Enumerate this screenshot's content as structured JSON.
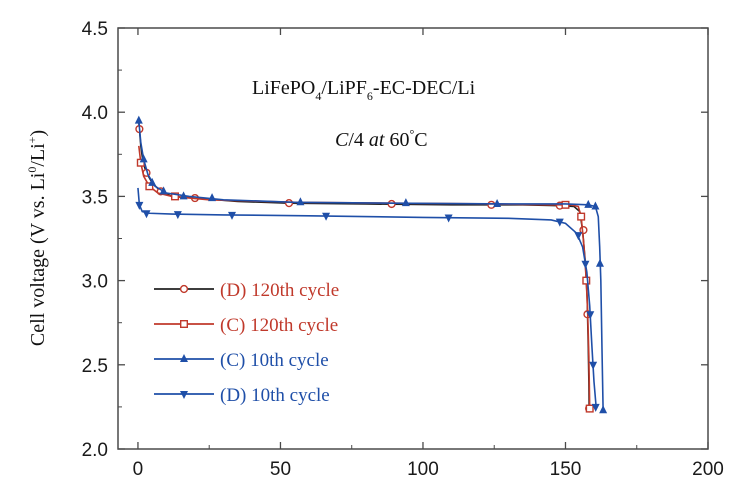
{
  "chart_data": {
    "type": "line",
    "title_parts": {
      "a": "LiFePO",
      "a_sub": "4",
      "b": "/LiPF",
      "b_sub": "6",
      "c": "-EC-DEC/Li"
    },
    "condition": {
      "rate": "C",
      "rest": "/4 ",
      "at": "at",
      "temp": " 60",
      "deg": "°",
      "unit": "C"
    },
    "ylabel": {
      "main": "Cell voltage (V vs. Li",
      "sup1": "0",
      "mid": "/Li",
      "sup2": "+",
      "end": ")"
    },
    "xlabel": "",
    "xlim": [
      -7,
      200
    ],
    "ylim": [
      2.0,
      4.5
    ],
    "xticks": [
      0,
      50,
      100,
      150,
      200
    ],
    "yticks": [
      2.0,
      2.5,
      3.0,
      3.5,
      4.0,
      4.5
    ],
    "xtick_labels": [
      "0",
      "50",
      "100",
      "150",
      "200"
    ],
    "ytick_labels": [
      "2.0",
      "2.5",
      "3.0",
      "3.5",
      "4.0",
      "4.5"
    ],
    "series": [
      {
        "name": "(D) 120th cycle",
        "line_color": "#222222",
        "marker": "circle-open",
        "marker_color": "#c0392b",
        "legend_color": "#c0392b",
        "points": [
          [
            0.2,
            3.96
          ],
          [
            0.5,
            3.9
          ],
          [
            1,
            3.8
          ],
          [
            1.8,
            3.7
          ],
          [
            3,
            3.64
          ],
          [
            5,
            3.58
          ],
          [
            8,
            3.53
          ],
          [
            12,
            3.5
          ],
          [
            20,
            3.49
          ],
          [
            35,
            3.47
          ],
          [
            53,
            3.46
          ],
          [
            80,
            3.455
          ],
          [
            110,
            3.45
          ],
          [
            135,
            3.45
          ],
          [
            148,
            3.445
          ],
          [
            153,
            3.44
          ],
          [
            155,
            3.41
          ],
          [
            156,
            3.3
          ],
          [
            157,
            3.1
          ],
          [
            157.6,
            2.9
          ],
          [
            158,
            2.6
          ],
          [
            158.2,
            2.4
          ],
          [
            158.3,
            2.24
          ]
        ],
        "markers": [
          [
            0.5,
            3.9
          ],
          [
            3,
            3.64
          ],
          [
            8,
            3.53
          ],
          [
            20,
            3.49
          ],
          [
            53,
            3.46
          ],
          [
            89,
            3.455
          ],
          [
            124,
            3.45
          ],
          [
            148,
            3.445
          ],
          [
            156.3,
            3.3
          ],
          [
            157.7,
            2.8
          ],
          [
            158.3,
            2.24
          ]
        ]
      },
      {
        "name": "(C) 120th cycle",
        "line_color": "#c0392b",
        "marker": "square-open",
        "marker_color": "#c0392b",
        "legend_color": "#c0392b",
        "points": [
          [
            0.3,
            3.8
          ],
          [
            1,
            3.7
          ],
          [
            2,
            3.62
          ],
          [
            4,
            3.56
          ],
          [
            7,
            3.52
          ],
          [
            12,
            3.5
          ],
          [
            25,
            3.48
          ],
          [
            55,
            3.465
          ],
          [
            90,
            3.46
          ],
          [
            125,
            3.455
          ],
          [
            145,
            3.45
          ],
          [
            152,
            3.45
          ],
          [
            154.5,
            3.44
          ],
          [
            155.5,
            3.38
          ],
          [
            156.5,
            3.2
          ],
          [
            157.3,
            3.0
          ],
          [
            157.8,
            2.8
          ],
          [
            158.2,
            2.55
          ],
          [
            158.5,
            2.24
          ]
        ],
        "markers": [
          [
            1,
            3.7
          ],
          [
            4,
            3.56
          ],
          [
            13,
            3.5
          ],
          [
            150,
            3.45
          ],
          [
            155.5,
            3.38
          ],
          [
            157.3,
            3.0
          ],
          [
            158.5,
            2.24
          ]
        ]
      },
      {
        "name": "(C) 10th cycle",
        "line_color": "#1f4fa8",
        "marker": "triangle-up",
        "marker_color": "#1f4fa8",
        "legend_color": "#1f4fa8",
        "points": [
          [
            0.3,
            3.95
          ],
          [
            1,
            3.82
          ],
          [
            2,
            3.72
          ],
          [
            3.5,
            3.63
          ],
          [
            6,
            3.56
          ],
          [
            10,
            3.52
          ],
          [
            18,
            3.5
          ],
          [
            30,
            3.48
          ],
          [
            55,
            3.465
          ],
          [
            90,
            3.46
          ],
          [
            130,
            3.455
          ],
          [
            150,
            3.455
          ],
          [
            158,
            3.45
          ],
          [
            160.5,
            3.44
          ],
          [
            161.5,
            3.38
          ],
          [
            162,
            3.2
          ],
          [
            162.4,
            3.0
          ],
          [
            162.8,
            2.6
          ],
          [
            163.2,
            2.23
          ]
        ],
        "markers": [
          [
            0.3,
            3.95
          ],
          [
            2,
            3.72
          ],
          [
            5,
            3.58
          ],
          [
            9,
            3.53
          ],
          [
            16,
            3.5
          ],
          [
            26,
            3.49
          ],
          [
            57,
            3.465
          ],
          [
            94,
            3.46
          ],
          [
            126,
            3.455
          ],
          [
            158,
            3.45
          ],
          [
            160.5,
            3.44
          ],
          [
            162.1,
            3.1
          ],
          [
            163.2,
            2.23
          ]
        ]
      },
      {
        "name": "(D) 10th cycle",
        "line_color": "#1f4fa8",
        "marker": "triangle-down",
        "marker_color": "#1f4fa8",
        "legend_color": "#1f4fa8",
        "points": [
          [
            0,
            3.55
          ],
          [
            0.5,
            3.45
          ],
          [
            1.5,
            3.41
          ],
          [
            4,
            3.4
          ],
          [
            12,
            3.395
          ],
          [
            30,
            3.39
          ],
          [
            60,
            3.385
          ],
          [
            100,
            3.375
          ],
          [
            130,
            3.37
          ],
          [
            145,
            3.36
          ],
          [
            150,
            3.34
          ],
          [
            154,
            3.28
          ],
          [
            156,
            3.2
          ],
          [
            157.5,
            3.05
          ],
          [
            158.5,
            2.85
          ],
          [
            159.3,
            2.6
          ],
          [
            160,
            2.4
          ],
          [
            160.8,
            2.24
          ]
        ],
        "markers": [
          [
            0.5,
            3.45
          ],
          [
            3,
            3.4
          ],
          [
            14,
            3.395
          ],
          [
            33,
            3.39
          ],
          [
            66,
            3.385
          ],
          [
            109,
            3.375
          ],
          [
            148,
            3.35
          ],
          [
            154.5,
            3.27
          ],
          [
            157,
            3.1
          ],
          [
            158.7,
            2.8
          ],
          [
            159.7,
            2.5
          ],
          [
            160.6,
            2.25
          ]
        ]
      }
    ],
    "legend": [
      "(D) 120th cycle",
      "(C) 120th cycle",
      "(C) 10th cycle",
      "(D) 10th cycle"
    ],
    "legend_position": "lower-left"
  }
}
